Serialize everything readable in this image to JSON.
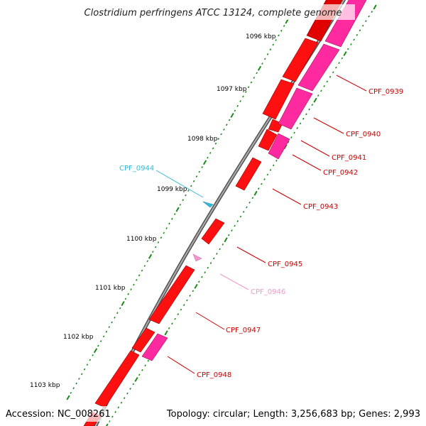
{
  "title": "Clostridium perfringens ATCC 13124, complete genome",
  "footer": {
    "accession": "Accession: NC_008261",
    "summary": "Topology: circular; Length: 3,256,683 bp; Genes: 2,993"
  },
  "ruler_labels": [
    "1096 kbp",
    "1097 kbp",
    "1098 kbp",
    "1099 kbp",
    "1100 kbp",
    "1101 kbp",
    "1102 kbp",
    "1103 kbp"
  ],
  "gene_labels": [
    {
      "id": "CPF_0939",
      "color": "#cc0000"
    },
    {
      "id": "CPF_0940",
      "color": "#cc0000"
    },
    {
      "id": "CPF_0941",
      "color": "#cc0000"
    },
    {
      "id": "CPF_0942",
      "color": "#cc0000"
    },
    {
      "id": "CPF_0943",
      "color": "#cc0000"
    },
    {
      "id": "CPF_0944",
      "color": "#33bbdd"
    },
    {
      "id": "CPF_0945",
      "color": "#cc0000"
    },
    {
      "id": "CPF_0946",
      "color": "#ee99cc"
    },
    {
      "id": "CPF_0947",
      "color": "#cc0000"
    },
    {
      "id": "CPF_0948",
      "color": "#cc0000"
    }
  ],
  "colors": {
    "cds": "#ff0000",
    "cds_dark": "#b00000",
    "gene": "#ff3399",
    "gene_dark": "#b0206a",
    "backbone": "#888888",
    "tick": "#1a8a1a",
    "trna": "#33bbdd",
    "misc": "#ee99cc"
  }
}
